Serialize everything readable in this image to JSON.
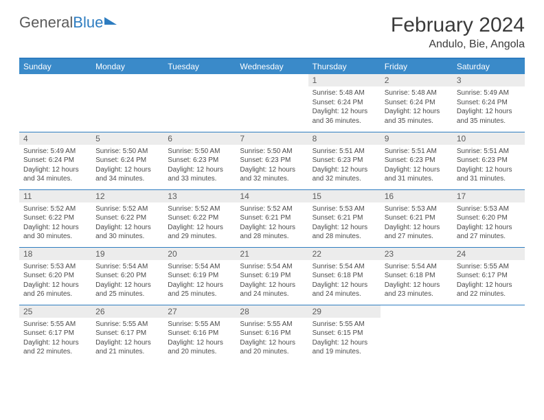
{
  "logo": {
    "part1": "General",
    "part2": "Blue"
  },
  "title": "February 2024",
  "location": "Andulo, Bie, Angola",
  "colors": {
    "header_bg": "#3a8ac9",
    "header_text": "#ffffff",
    "border": "#2d7cc0",
    "daynum_bg": "#ececec",
    "text": "#3a3a3a"
  },
  "weekdays": [
    "Sunday",
    "Monday",
    "Tuesday",
    "Wednesday",
    "Thursday",
    "Friday",
    "Saturday"
  ],
  "weeks": [
    [
      null,
      null,
      null,
      null,
      {
        "n": "1",
        "sr": "5:48 AM",
        "ss": "6:24 PM",
        "dl": "12 hours and 36 minutes."
      },
      {
        "n": "2",
        "sr": "5:48 AM",
        "ss": "6:24 PM",
        "dl": "12 hours and 35 minutes."
      },
      {
        "n": "3",
        "sr": "5:49 AM",
        "ss": "6:24 PM",
        "dl": "12 hours and 35 minutes."
      }
    ],
    [
      {
        "n": "4",
        "sr": "5:49 AM",
        "ss": "6:24 PM",
        "dl": "12 hours and 34 minutes."
      },
      {
        "n": "5",
        "sr": "5:50 AM",
        "ss": "6:24 PM",
        "dl": "12 hours and 34 minutes."
      },
      {
        "n": "6",
        "sr": "5:50 AM",
        "ss": "6:23 PM",
        "dl": "12 hours and 33 minutes."
      },
      {
        "n": "7",
        "sr": "5:50 AM",
        "ss": "6:23 PM",
        "dl": "12 hours and 32 minutes."
      },
      {
        "n": "8",
        "sr": "5:51 AM",
        "ss": "6:23 PM",
        "dl": "12 hours and 32 minutes."
      },
      {
        "n": "9",
        "sr": "5:51 AM",
        "ss": "6:23 PM",
        "dl": "12 hours and 31 minutes."
      },
      {
        "n": "10",
        "sr": "5:51 AM",
        "ss": "6:23 PM",
        "dl": "12 hours and 31 minutes."
      }
    ],
    [
      {
        "n": "11",
        "sr": "5:52 AM",
        "ss": "6:22 PM",
        "dl": "12 hours and 30 minutes."
      },
      {
        "n": "12",
        "sr": "5:52 AM",
        "ss": "6:22 PM",
        "dl": "12 hours and 30 minutes."
      },
      {
        "n": "13",
        "sr": "5:52 AM",
        "ss": "6:22 PM",
        "dl": "12 hours and 29 minutes."
      },
      {
        "n": "14",
        "sr": "5:52 AM",
        "ss": "6:21 PM",
        "dl": "12 hours and 28 minutes."
      },
      {
        "n": "15",
        "sr": "5:53 AM",
        "ss": "6:21 PM",
        "dl": "12 hours and 28 minutes."
      },
      {
        "n": "16",
        "sr": "5:53 AM",
        "ss": "6:21 PM",
        "dl": "12 hours and 27 minutes."
      },
      {
        "n": "17",
        "sr": "5:53 AM",
        "ss": "6:20 PM",
        "dl": "12 hours and 27 minutes."
      }
    ],
    [
      {
        "n": "18",
        "sr": "5:53 AM",
        "ss": "6:20 PM",
        "dl": "12 hours and 26 minutes."
      },
      {
        "n": "19",
        "sr": "5:54 AM",
        "ss": "6:20 PM",
        "dl": "12 hours and 25 minutes."
      },
      {
        "n": "20",
        "sr": "5:54 AM",
        "ss": "6:19 PM",
        "dl": "12 hours and 25 minutes."
      },
      {
        "n": "21",
        "sr": "5:54 AM",
        "ss": "6:19 PM",
        "dl": "12 hours and 24 minutes."
      },
      {
        "n": "22",
        "sr": "5:54 AM",
        "ss": "6:18 PM",
        "dl": "12 hours and 24 minutes."
      },
      {
        "n": "23",
        "sr": "5:54 AM",
        "ss": "6:18 PM",
        "dl": "12 hours and 23 minutes."
      },
      {
        "n": "24",
        "sr": "5:55 AM",
        "ss": "6:17 PM",
        "dl": "12 hours and 22 minutes."
      }
    ],
    [
      {
        "n": "25",
        "sr": "5:55 AM",
        "ss": "6:17 PM",
        "dl": "12 hours and 22 minutes."
      },
      {
        "n": "26",
        "sr": "5:55 AM",
        "ss": "6:17 PM",
        "dl": "12 hours and 21 minutes."
      },
      {
        "n": "27",
        "sr": "5:55 AM",
        "ss": "6:16 PM",
        "dl": "12 hours and 20 minutes."
      },
      {
        "n": "28",
        "sr": "5:55 AM",
        "ss": "6:16 PM",
        "dl": "12 hours and 20 minutes."
      },
      {
        "n": "29",
        "sr": "5:55 AM",
        "ss": "6:15 PM",
        "dl": "12 hours and 19 minutes."
      },
      null,
      null
    ]
  ],
  "labels": {
    "sunrise": "Sunrise:",
    "sunset": "Sunset:",
    "daylight": "Daylight:"
  }
}
